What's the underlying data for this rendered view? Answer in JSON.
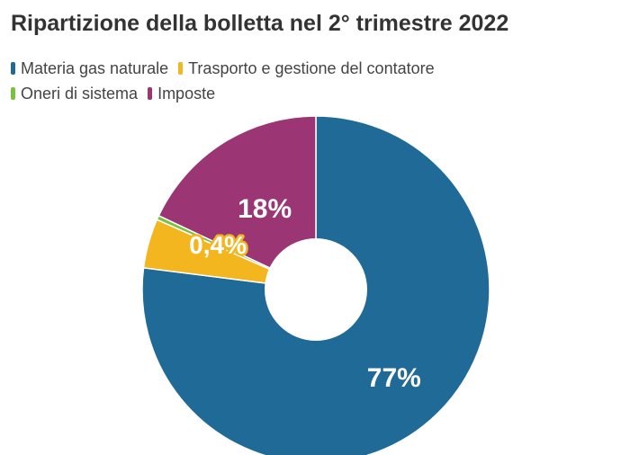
{
  "chart_data": {
    "type": "pie",
    "title": "Ripartizione della bolletta nel 2° trimestre 2022",
    "legend_placement": "top",
    "series": [
      {
        "name": "Materia gas naturale",
        "value": 77,
        "label": "77%",
        "color": "#1f6a97"
      },
      {
        "name": "Trasporto e gestione del contatore",
        "value": 4.6,
        "label": "",
        "color": "#f3b61f"
      },
      {
        "name": "Oneri di sistema",
        "value": 0.4,
        "label": "0,4%",
        "color": "#7ac142"
      },
      {
        "name": "Imposte",
        "value": 18,
        "label": "18%",
        "color": "#9b3574"
      }
    ],
    "donut": true
  }
}
